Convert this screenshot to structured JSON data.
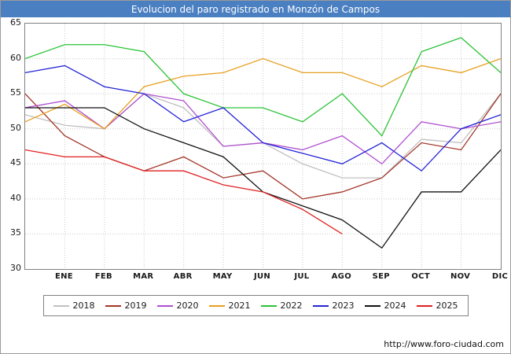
{
  "title": "Evolucion del paro registrado en Monzón de Campos",
  "footer": {
    "url": "http://www.foro-ciudad.com"
  },
  "colors": {
    "title_bar": "#4a7fc1",
    "title_text": "#ffffff",
    "plot_border": "#808080",
    "gridline": "#c9c9c9"
  },
  "chart_data": {
    "type": "line",
    "title": "Evolucion del paro registrado en Monzón de Campos",
    "xlabel": "",
    "ylabel": "",
    "ylim": [
      30,
      65
    ],
    "yticks": [
      65,
      60,
      55,
      50,
      45,
      40,
      35,
      30
    ],
    "grid": true,
    "legend_position": "bottom",
    "x_labels": [
      "ENE",
      "FEB",
      "MAR",
      "ABR",
      "MAY",
      "JUN",
      "JUL",
      "AGO",
      "SEP",
      "OCT",
      "NOV",
      "DIC"
    ],
    "points_note": "Each series has 13 points: the first sits on the y-axis before the ENE label; 2025 ends at AGO.",
    "series": [
      {
        "name": "2018",
        "color": "#c0c0c0",
        "values": [
          52,
          50.5,
          50,
          55,
          53,
          47.5,
          48,
          45,
          43,
          43,
          48.5,
          48,
          55
        ]
      },
      {
        "name": "2019",
        "color": "#a23527",
        "values": [
          55,
          49,
          46,
          44,
          46,
          43,
          44,
          40,
          41,
          43,
          48,
          47,
          55
        ]
      },
      {
        "name": "2020",
        "color": "#b04fd0",
        "values": [
          53,
          54,
          50,
          55,
          54,
          47.5,
          48,
          47,
          49,
          45,
          51,
          50,
          51
        ]
      },
      {
        "name": "2021",
        "color": "#e8a020",
        "values": [
          51,
          53.5,
          50,
          56,
          57.5,
          58,
          60,
          58,
          58,
          56,
          59,
          58,
          60
        ]
      },
      {
        "name": "2022",
        "color": "#2bc337",
        "values": [
          60,
          62,
          62,
          61,
          55,
          53,
          53,
          51,
          55,
          49,
          61,
          63,
          58
        ]
      },
      {
        "name": "2023",
        "color": "#2424d6",
        "values": [
          58,
          59,
          56,
          55,
          51,
          53,
          48,
          46.5,
          45,
          48,
          44,
          50,
          52
        ]
      },
      {
        "name": "2024",
        "color": "#111111",
        "values": [
          53,
          53,
          53,
          50,
          48,
          46,
          41,
          39,
          37,
          33,
          41,
          41,
          47
        ]
      },
      {
        "name": "2025",
        "color": "#e02020",
        "values": [
          47,
          46,
          46,
          44,
          44,
          42,
          41,
          38.5,
          35
        ]
      }
    ]
  }
}
